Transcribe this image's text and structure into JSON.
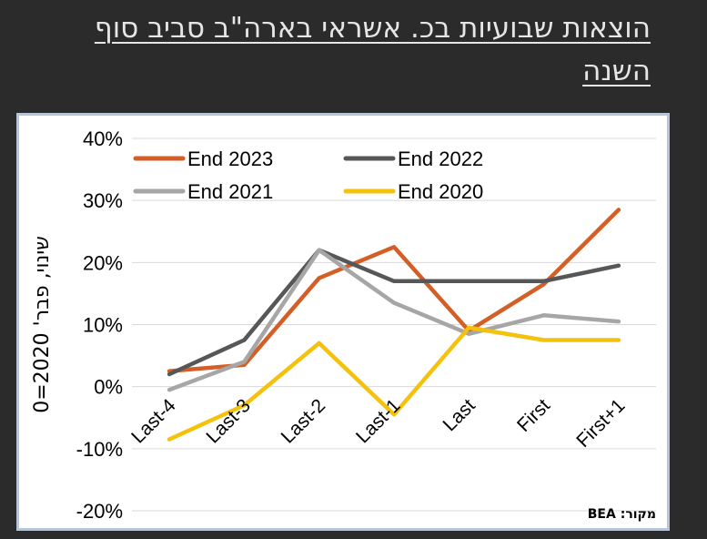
{
  "title": "הוצאות שבועיות בכ. אשראי בארה\"ב סביב סוף השנה",
  "source": "מקור: BEA",
  "chart_data": {
    "type": "line",
    "categories": [
      "Last-4",
      "Last-3",
      "Last-2",
      "Last-1",
      "Last",
      "First",
      "First+1"
    ],
    "ylabel": "שינוי, פבר' 2020=0",
    "ylim": [
      -20,
      40
    ],
    "yticks": [
      40,
      30,
      20,
      10,
      0,
      -10,
      -20
    ],
    "ytick_labels": [
      "40%",
      "30%",
      "20%",
      "10%",
      "0%",
      "-10%",
      "-20%"
    ],
    "grid": true,
    "legend_position": "top",
    "series": [
      {
        "name": "End 2023",
        "color": "#d35f27",
        "values": [
          2.5,
          3.5,
          17.5,
          22.5,
          9.0,
          16.5,
          28.5
        ]
      },
      {
        "name": "End 2022",
        "color": "#555759",
        "values": [
          2.0,
          7.5,
          22.0,
          17.0,
          17.0,
          17.0,
          19.5
        ]
      },
      {
        "name": "End 2021",
        "color": "#a6a6a6",
        "values": [
          -0.5,
          4.0,
          22.0,
          13.5,
          8.5,
          11.5,
          10.5
        ]
      },
      {
        "name": "End 2020",
        "color": "#f4c20d",
        "values": [
          -8.5,
          -3.0,
          7.0,
          -4.5,
          9.5,
          7.5,
          7.5
        ]
      }
    ]
  }
}
